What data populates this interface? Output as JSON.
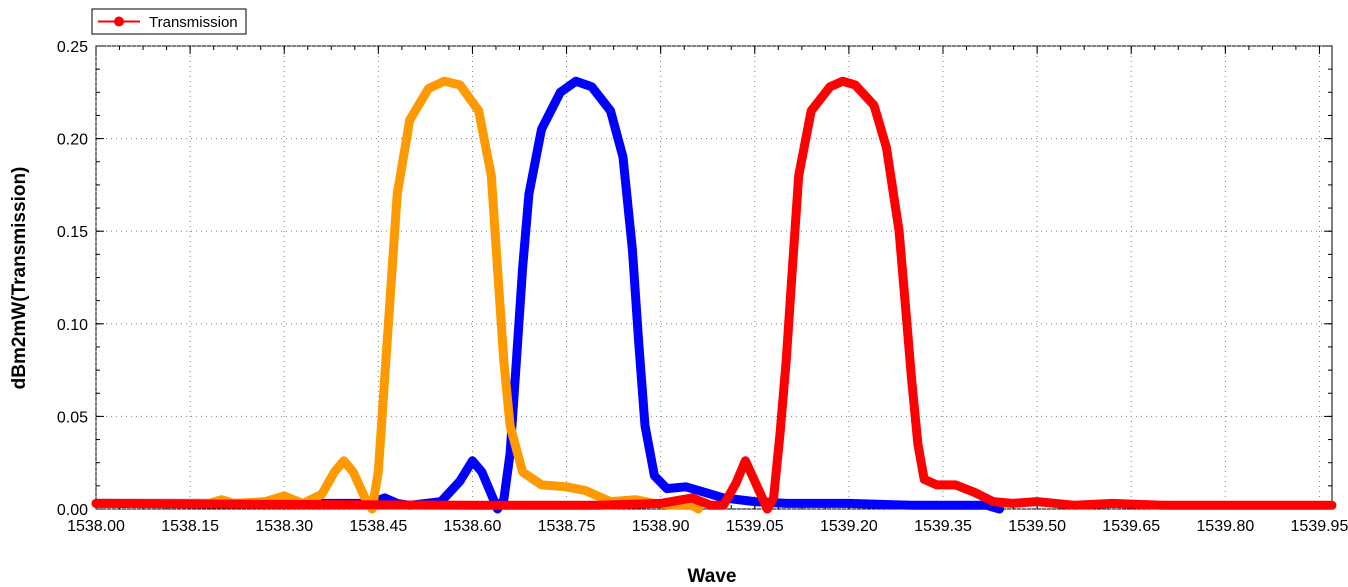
{
  "chart_data": {
    "type": "line",
    "title": "",
    "xlabel": "Wave",
    "ylabel": "dBm2mW(Transmission)",
    "xlim": [
      1538.0,
      1539.97
    ],
    "ylim": [
      0.0,
      0.25
    ],
    "x_ticks": [
      "1538.00",
      "1538.15",
      "1538.30",
      "1538.45",
      "1538.60",
      "1538.75",
      "1538.90",
      "1539.05",
      "1539.20",
      "1539.35",
      "1539.50",
      "1539.65",
      "1539.80",
      "1539.95"
    ],
    "y_ticks": [
      "0.00",
      "0.05",
      "0.10",
      "0.15",
      "0.20",
      "0.25"
    ],
    "grid": true,
    "legend_position": "top-left",
    "legend": [
      "Transmission"
    ],
    "series": [
      {
        "name": "Transmission",
        "color": "#ff0000",
        "marker": "circle",
        "points": [
          [
            1538.0,
            0.003
          ],
          [
            1538.6,
            0.002
          ],
          [
            1538.8,
            0.002
          ],
          [
            1538.9,
            0.003
          ],
          [
            1538.95,
            0.006
          ],
          [
            1538.98,
            0.002
          ],
          [
            1539.0,
            0.002
          ],
          [
            1539.02,
            0.014
          ],
          [
            1539.035,
            0.026
          ],
          [
            1539.05,
            0.015
          ],
          [
            1539.07,
            0.0
          ],
          [
            1539.08,
            0.006
          ],
          [
            1539.09,
            0.04
          ],
          [
            1539.1,
            0.08
          ],
          [
            1539.11,
            0.13
          ],
          [
            1539.12,
            0.18
          ],
          [
            1539.14,
            0.215
          ],
          [
            1539.17,
            0.228
          ],
          [
            1539.19,
            0.231
          ],
          [
            1539.21,
            0.229
          ],
          [
            1539.24,
            0.218
          ],
          [
            1539.26,
            0.195
          ],
          [
            1539.28,
            0.15
          ],
          [
            1539.29,
            0.11
          ],
          [
            1539.3,
            0.07
          ],
          [
            1539.31,
            0.035
          ],
          [
            1539.32,
            0.016
          ],
          [
            1539.34,
            0.013
          ],
          [
            1539.37,
            0.013
          ],
          [
            1539.4,
            0.009
          ],
          [
            1539.43,
            0.004
          ],
          [
            1539.46,
            0.003
          ],
          [
            1539.5,
            0.004
          ],
          [
            1539.56,
            0.002
          ],
          [
            1539.62,
            0.003
          ],
          [
            1539.7,
            0.002
          ],
          [
            1539.97,
            0.002
          ]
        ]
      },
      {
        "color": "#ff9900",
        "points": [
          [
            1538.0,
            0.003
          ],
          [
            1538.18,
            0.003
          ],
          [
            1538.2,
            0.005
          ],
          [
            1538.22,
            0.003
          ],
          [
            1538.27,
            0.004
          ],
          [
            1538.3,
            0.007
          ],
          [
            1538.33,
            0.003
          ],
          [
            1538.36,
            0.008
          ],
          [
            1538.38,
            0.02
          ],
          [
            1538.395,
            0.026
          ],
          [
            1538.41,
            0.02
          ],
          [
            1538.43,
            0.005
          ],
          [
            1538.44,
            0.0
          ],
          [
            1538.45,
            0.02
          ],
          [
            1538.46,
            0.07
          ],
          [
            1538.47,
            0.12
          ],
          [
            1538.48,
            0.17
          ],
          [
            1538.5,
            0.21
          ],
          [
            1538.53,
            0.227
          ],
          [
            1538.555,
            0.231
          ],
          [
            1538.58,
            0.229
          ],
          [
            1538.61,
            0.215
          ],
          [
            1538.63,
            0.18
          ],
          [
            1538.64,
            0.13
          ],
          [
            1538.65,
            0.08
          ],
          [
            1538.66,
            0.045
          ],
          [
            1538.68,
            0.02
          ],
          [
            1538.71,
            0.013
          ],
          [
            1538.75,
            0.012
          ],
          [
            1538.78,
            0.01
          ],
          [
            1538.82,
            0.004
          ],
          [
            1538.86,
            0.005
          ],
          [
            1538.89,
            0.003
          ],
          [
            1538.92,
            0.002
          ],
          [
            1538.95,
            0.002
          ],
          [
            1538.96,
            0.0
          ]
        ]
      },
      {
        "color": "#0000ff",
        "points": [
          [
            1538.0,
            0.003
          ],
          [
            1538.3,
            0.003
          ],
          [
            1538.38,
            0.003
          ],
          [
            1538.42,
            0.003
          ],
          [
            1538.445,
            0.004
          ],
          [
            1538.46,
            0.006
          ],
          [
            1538.48,
            0.003
          ],
          [
            1538.5,
            0.002
          ],
          [
            1538.55,
            0.004
          ],
          [
            1538.58,
            0.015
          ],
          [
            1538.6,
            0.026
          ],
          [
            1538.615,
            0.02
          ],
          [
            1538.63,
            0.008
          ],
          [
            1538.64,
            0.0
          ],
          [
            1538.65,
            0.005
          ],
          [
            1538.66,
            0.03
          ],
          [
            1538.67,
            0.08
          ],
          [
            1538.68,
            0.13
          ],
          [
            1538.69,
            0.17
          ],
          [
            1538.71,
            0.205
          ],
          [
            1538.74,
            0.225
          ],
          [
            1538.765,
            0.231
          ],
          [
            1538.79,
            0.228
          ],
          [
            1538.82,
            0.215
          ],
          [
            1538.84,
            0.19
          ],
          [
            1538.855,
            0.14
          ],
          [
            1538.865,
            0.09
          ],
          [
            1538.875,
            0.045
          ],
          [
            1538.89,
            0.018
          ],
          [
            1538.91,
            0.011
          ],
          [
            1538.94,
            0.012
          ],
          [
            1538.97,
            0.009
          ],
          [
            1539.0,
            0.006
          ],
          [
            1539.05,
            0.004
          ],
          [
            1539.1,
            0.003
          ],
          [
            1539.2,
            0.003
          ],
          [
            1539.3,
            0.002
          ],
          [
            1539.42,
            0.002
          ],
          [
            1539.44,
            0.0
          ]
        ]
      }
    ]
  }
}
